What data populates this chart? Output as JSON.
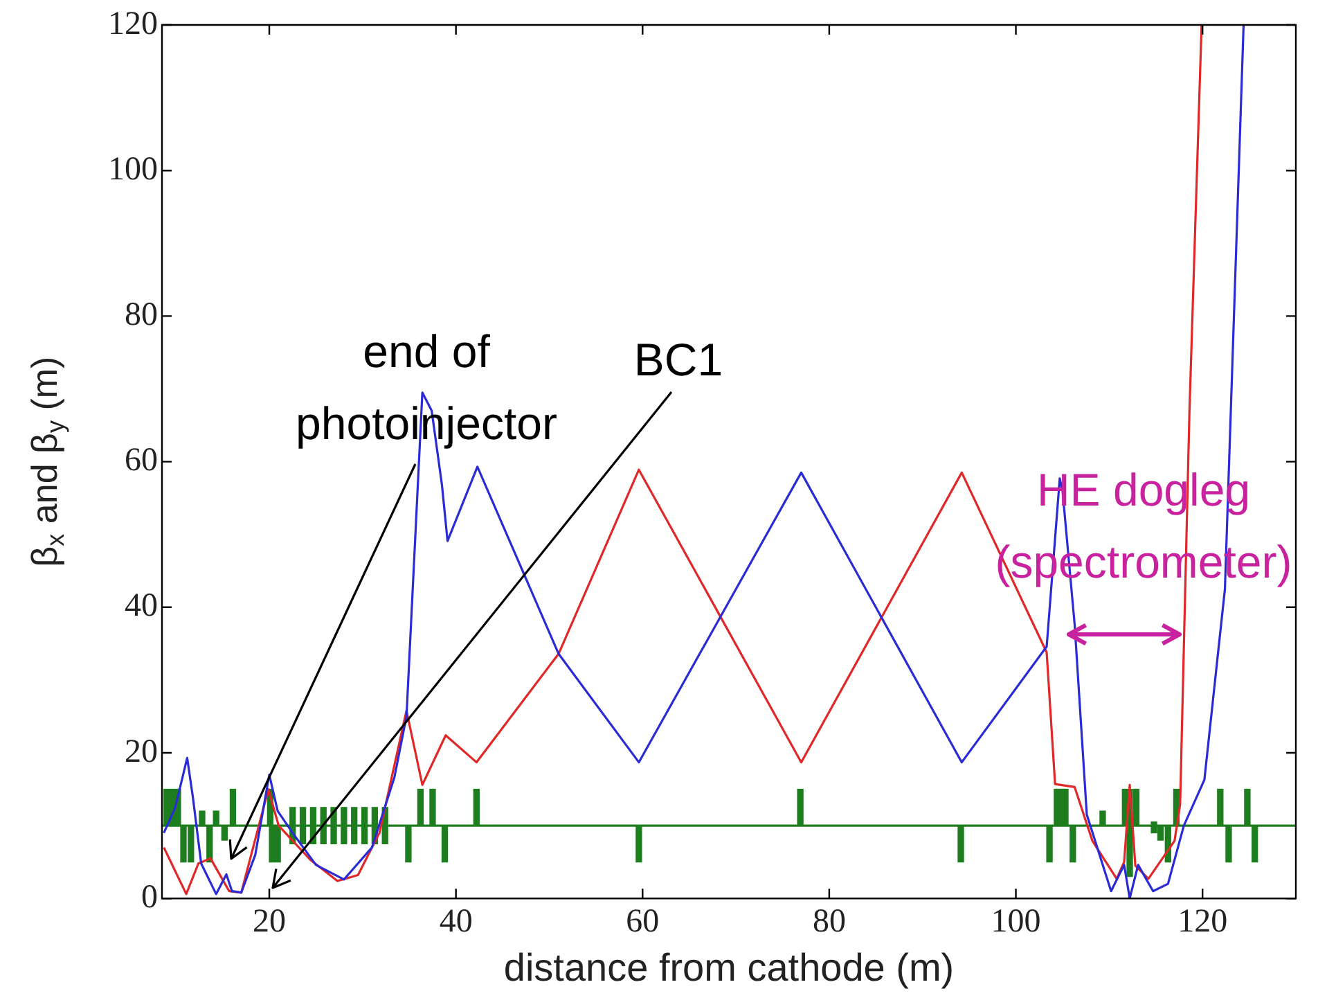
{
  "chart_data": {
    "type": "line",
    "xlabel": "distance from cathode (m)",
    "ylabel": "β$_{x}$ and β$_{y}$ (m)",
    "xlim": [
      8.5,
      130
    ],
    "xticks": [
      20,
      40,
      60,
      80,
      100,
      120
    ],
    "ylim": [
      0,
      120
    ],
    "yticks": [
      0,
      20,
      40,
      60,
      80,
      100,
      120
    ],
    "grid": false,
    "legend": false,
    "marker": "none",
    "line_style": "solid",
    "series": [
      {
        "color": "#2b2bd6",
        "x": [
          8.7,
          9.9,
          11.2,
          11.8,
          12.7,
          14.3,
          15.4,
          16,
          17,
          18.5,
          20,
          20.9,
          22.5,
          25,
          28,
          31,
          33.4,
          34.7,
          36.4,
          37.4,
          38.5,
          39.1,
          42.3,
          51,
          59.6,
          77,
          94.2,
          103.3,
          104.7,
          105,
          106.3,
          107.6,
          110.2,
          111.6,
          112.2,
          113.1,
          114.7,
          116.3,
          118,
          120.2,
          122.4,
          124.4
        ],
        "values": [
          9,
          12.4,
          19.3,
          14,
          4.8,
          0.6,
          3.3,
          1,
          0.8,
          6,
          17,
          12,
          9,
          4.6,
          2.6,
          7,
          16.6,
          25,
          69.5,
          67,
          56.8,
          49.1,
          59.3,
          33.6,
          18.7,
          58.5,
          18.7,
          34.6,
          57.7,
          56,
          37.6,
          11.5,
          1,
          4.6,
          0,
          4.6,
          1,
          2,
          10,
          16.3,
          42.5,
          120
        ]
      },
      {
        "color": "#e02828",
        "x": [
          8.7,
          11.1,
          12.4,
          13.7,
          15.7,
          17,
          19.9,
          21,
          24.4,
          27.3,
          29.5,
          31.8,
          34.7,
          36.4,
          38.9,
          42.2,
          51,
          59.6,
          77,
          94.2,
          103.3,
          104.2,
          106.3,
          108.2,
          110.8,
          111.6,
          112.2,
          112.8,
          114.2,
          117,
          117.6,
          118.6,
          119.9
        ],
        "values": [
          7,
          0.6,
          4.8,
          5.5,
          1,
          0.8,
          15,
          10,
          5.3,
          2.4,
          3.2,
          9,
          25.8,
          15.6,
          22.4,
          18.7,
          33.6,
          58.9,
          18.7,
          58.5,
          33.8,
          15.7,
          15.3,
          7.9,
          2.7,
          5,
          15.6,
          4.5,
          2.7,
          7.9,
          12.9,
          67,
          120
        ]
      },
      {
        "type": "bar",
        "color": "#1e7d1e",
        "x": [
          9,
          9.6,
          10.2,
          10.8,
          11.6,
          12.8,
          13.6,
          14.3,
          15.2,
          16.1,
          20.1,
          20.3,
          20.9,
          22.5,
          23.6,
          24.7,
          25.8,
          26.9,
          28,
          29.1,
          30.2,
          31.3,
          32.4,
          34.9,
          36.2,
          37.5,
          38.8,
          42.2,
          59.6,
          76.9,
          94.1,
          103.6,
          104.4,
          104.9,
          105.3,
          106.1,
          109.3,
          111.7,
          112.2,
          112.9,
          114.8,
          115.5,
          116.3,
          117.2,
          121.9,
          122.8,
          124.8,
          125.6
        ],
        "base": [
          10,
          10,
          10,
          5,
          5,
          10,
          5,
          10,
          8,
          10,
          10,
          5,
          5,
          7.5,
          7.5,
          7.5,
          7.5,
          7.5,
          7.5,
          7.5,
          7.5,
          7.5,
          7.5,
          5,
          10,
          10,
          5,
          10,
          5,
          10,
          5,
          5,
          10,
          10,
          10,
          5,
          10,
          10,
          3,
          10,
          9,
          8,
          5,
          10,
          10,
          5,
          10,
          5
        ],
        "values": [
          5,
          5,
          5,
          5,
          5,
          2,
          5,
          2,
          2,
          5,
          5,
          5,
          5,
          5,
          5,
          5,
          5,
          5,
          5,
          5,
          5,
          5,
          5,
          5,
          5,
          5,
          5,
          5,
          5,
          5,
          5,
          5,
          5,
          5,
          5,
          5,
          2,
          5,
          12,
          5,
          1.5,
          2,
          5,
          5,
          5,
          5,
          5,
          5
        ]
      }
    ],
    "ref_lines": [
      {
        "axis": "y",
        "value": 10,
        "label": null,
        "color": "#1e7d1e"
      }
    ],
    "annotations": [
      "end of\nphotoinjector",
      "BC1",
      "HE dogleg\n(spectrometer)"
    ]
  }
}
